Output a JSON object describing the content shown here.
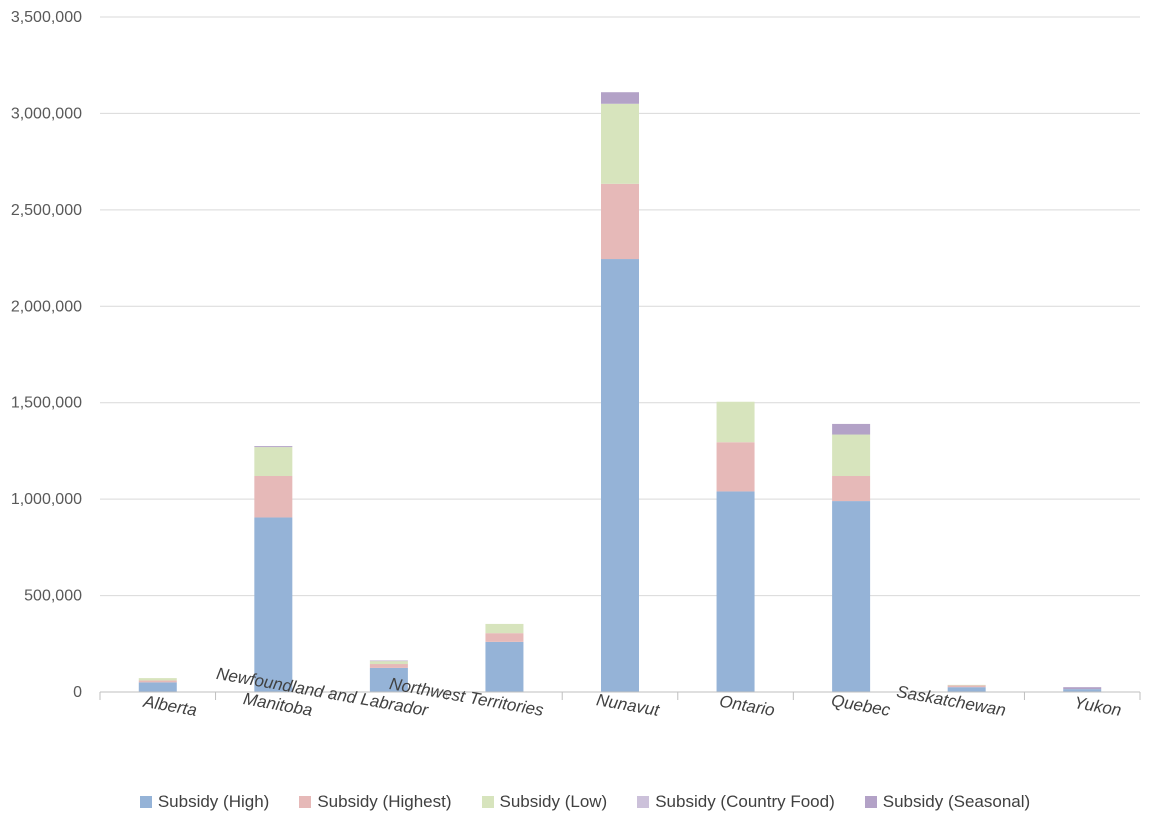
{
  "chart_data": {
    "type": "bar",
    "stacked": true,
    "title": "",
    "xlabel": "",
    "ylabel": "",
    "ylim": [
      0,
      3500000
    ],
    "yticks": [
      0,
      500000,
      1000000,
      1500000,
      2000000,
      2500000,
      3000000,
      3500000
    ],
    "ytick_labels": [
      "0",
      "500,000",
      "1,000,000",
      "1,500,000",
      "2,000,000",
      "2,500,000",
      "3,000,000",
      "3,500,000"
    ],
    "grid": true,
    "legend_position": "bottom",
    "categories": [
      "Alberta",
      "Manitoba",
      "Newfoundland and Labrador",
      "Northwest Territories",
      "Nunavut",
      "Ontario",
      "Quebec",
      "Saskatchewan",
      "Yukon"
    ],
    "series": [
      {
        "name": "Subsidy (High)",
        "color": "#95b3d7",
        "values": [
          50000,
          905000,
          125000,
          260000,
          2245000,
          1040000,
          990000,
          25000,
          15000
        ]
      },
      {
        "name": "Subsidy (Highest)",
        "color": "#e6b9b8",
        "values": [
          10000,
          215000,
          20000,
          45000,
          390000,
          255000,
          130000,
          10000,
          0
        ]
      },
      {
        "name": "Subsidy (Low)",
        "color": "#d7e4bd",
        "values": [
          12000,
          150000,
          15000,
          48000,
          415000,
          210000,
          215000,
          2000,
          0
        ]
      },
      {
        "name": "Subsidy (Country Food)",
        "color": "#ccc1da",
        "values": [
          0,
          0,
          0,
          0,
          0,
          0,
          0,
          0,
          0
        ]
      },
      {
        "name": "Subsidy (Seasonal)",
        "color": "#b3a2c7",
        "values": [
          0,
          5000,
          3000,
          0,
          60000,
          0,
          55000,
          0,
          10000
        ]
      }
    ]
  }
}
